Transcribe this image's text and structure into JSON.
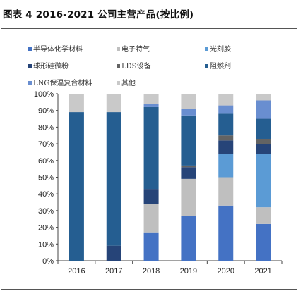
{
  "title": "图表 4 2016-2021 公司主营产品(按比例)",
  "chart_data": {
    "type": "bar",
    "stacked": true,
    "categories": [
      "2016",
      "2017",
      "2018",
      "2019",
      "2020",
      "2021"
    ],
    "y_ticks": [
      "0%",
      "10%",
      "20%",
      "30%",
      "40%",
      "50%",
      "60%",
      "70%",
      "80%",
      "90%",
      "100%"
    ],
    "ylim": [
      0,
      100
    ],
    "legend_position": "top",
    "series": [
      {
        "name": "半导体化学材料",
        "color": "#4472C4",
        "values": [
          0,
          0,
          17,
          27,
          33,
          22
        ]
      },
      {
        "name": "电子特气",
        "color": "#BFBFBF",
        "values": [
          0,
          0,
          17,
          22,
          17,
          10
        ]
      },
      {
        "name": "光刻胶",
        "color": "#5B9BD5",
        "values": [
          0,
          0,
          0,
          0,
          14,
          32
        ]
      },
      {
        "name": "球形硅微粉",
        "color": "#264478",
        "values": [
          0,
          9,
          9,
          7,
          8,
          6
        ]
      },
      {
        "name": "LDS设备",
        "color": "#636363",
        "values": [
          0,
          0,
          0,
          1,
          3,
          3
        ]
      },
      {
        "name": "阻燃剂",
        "color": "#255E91",
        "values": [
          89,
          80,
          49,
          30,
          13,
          12
        ]
      },
      {
        "name": "LNG保温复合材料",
        "color": "#698ED0",
        "values": [
          0,
          0,
          2,
          4,
          5,
          11
        ]
      },
      {
        "name": "其他",
        "color": "#C9C9C9",
        "values": [
          11,
          11,
          6,
          9,
          7,
          4
        ]
      }
    ]
  }
}
